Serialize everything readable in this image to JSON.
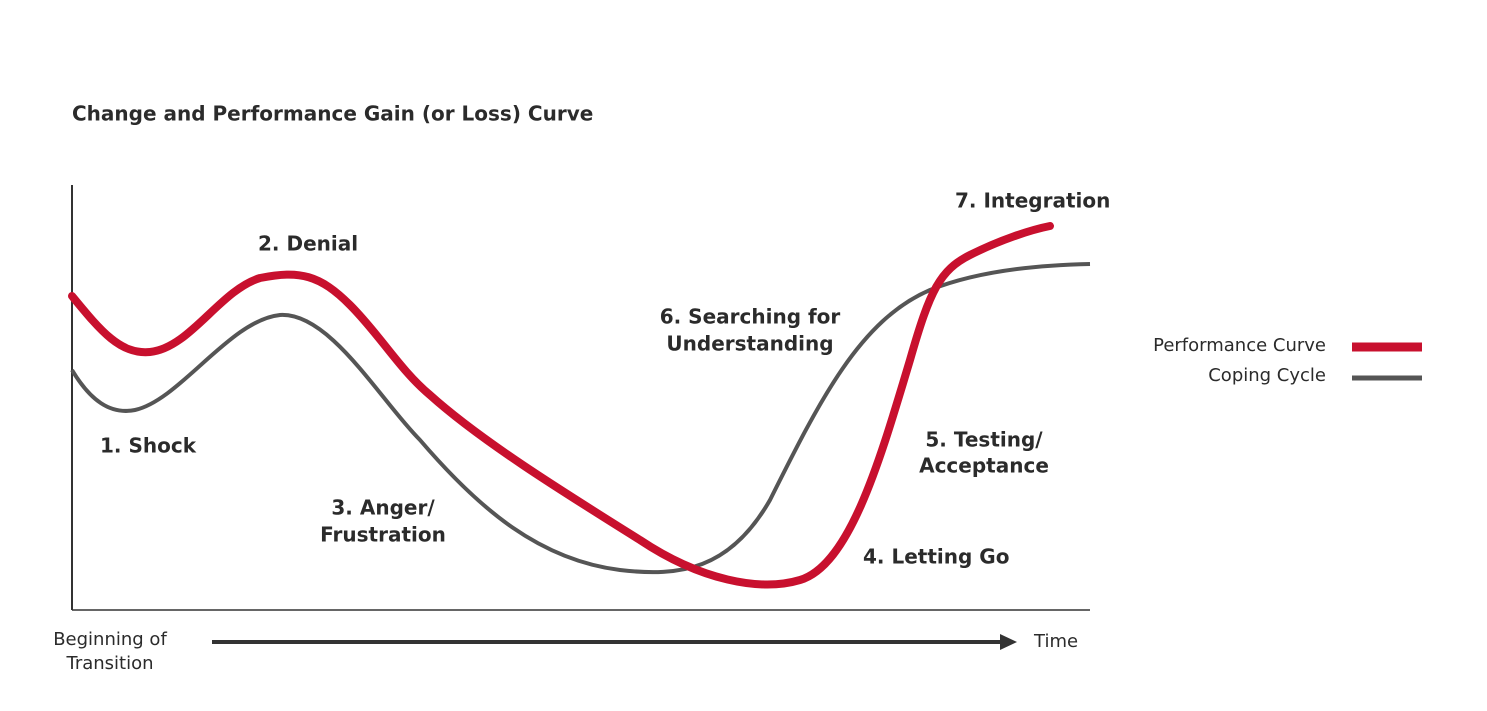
{
  "title": "Change and Performance Gain (or Loss) Curve",
  "stages": [
    [
      "1. Shock"
    ],
    [
      "2. Denial"
    ],
    [
      "3. Anger/",
      "Frustration"
    ],
    [
      "4. Letting Go"
    ],
    [
      "5. Testing/",
      "Acceptance"
    ],
    [
      "6. Searching for",
      "Understanding"
    ],
    [
      "7. Integration"
    ]
  ],
  "legend": [
    "Performance Curve",
    "Coping Cycle"
  ],
  "axis": {
    "start": [
      "Beginning of",
      "Transition"
    ],
    "end": "Time"
  }
}
